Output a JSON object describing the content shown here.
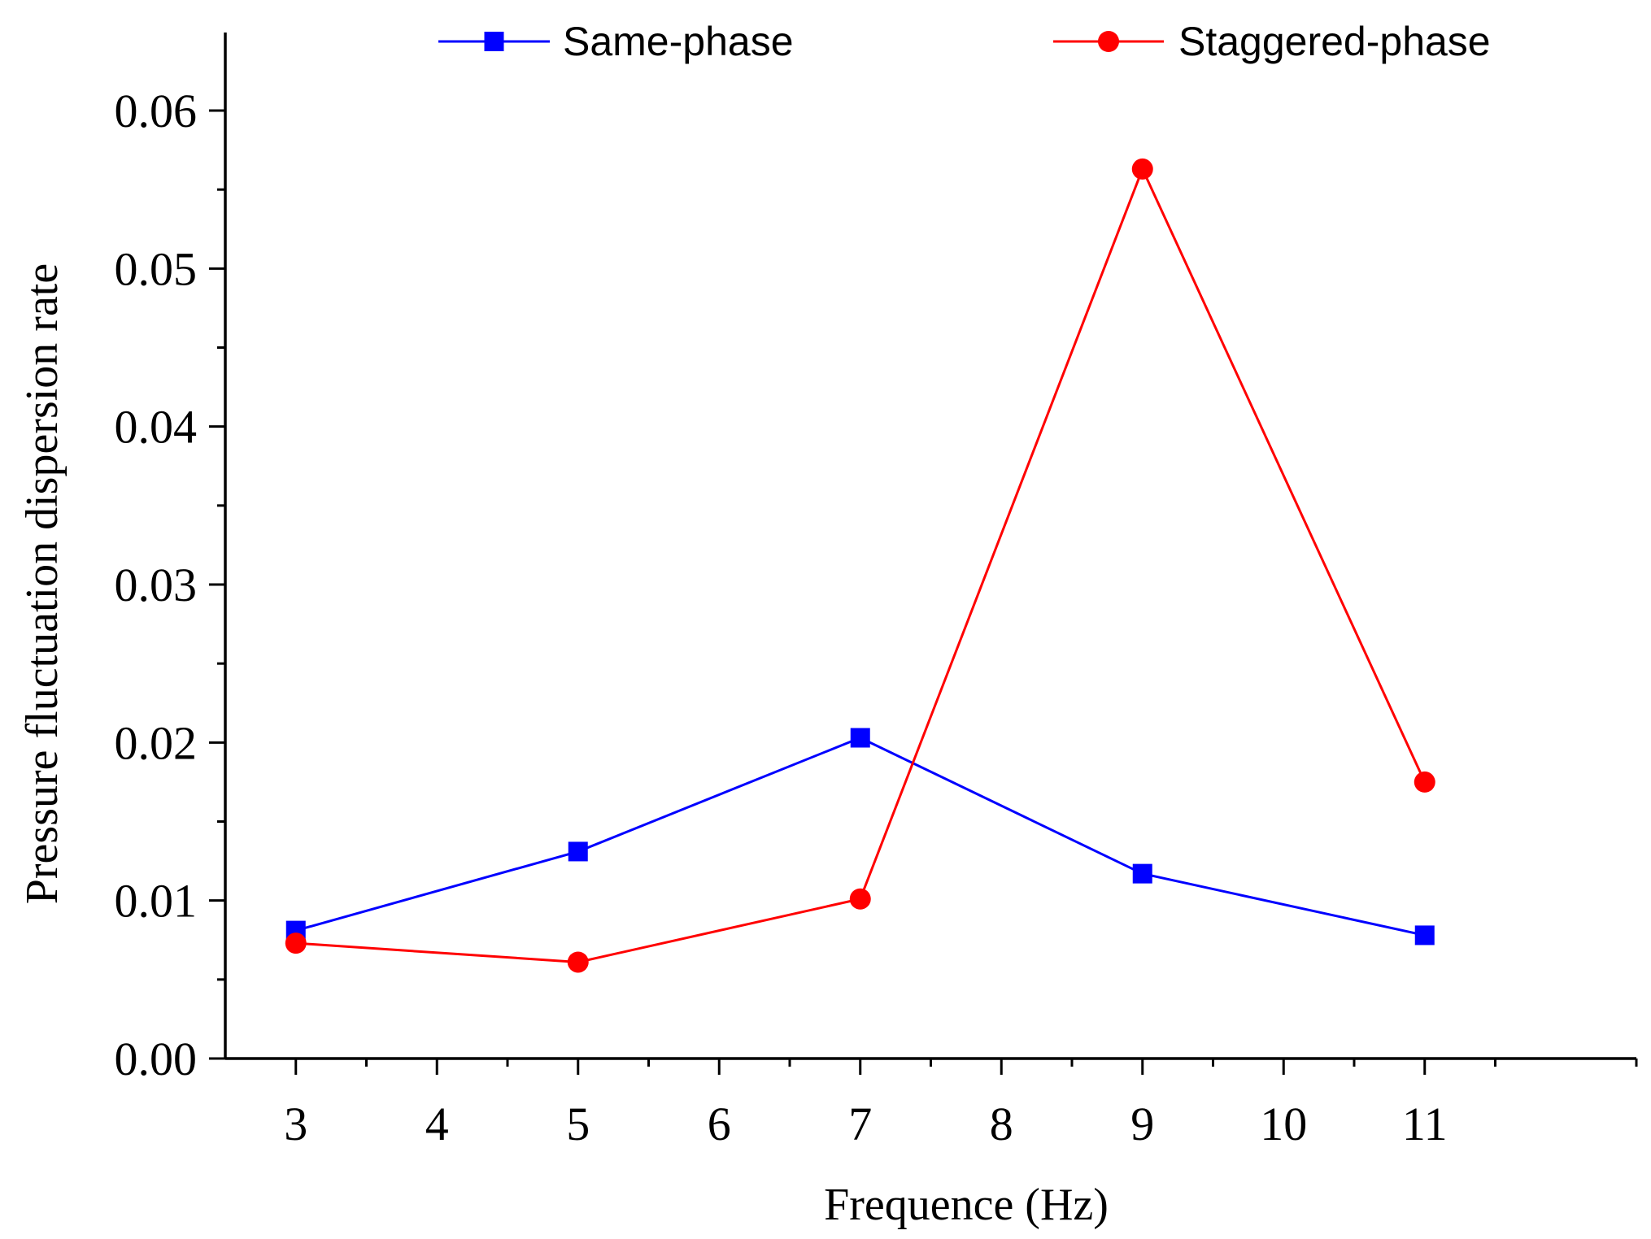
{
  "chart_data": {
    "type": "line",
    "title": "",
    "xlabel": "Frequence (Hz)",
    "ylabel": "Pressure fluctuation dispersion rate",
    "xlim": [
      2.5,
      12.5
    ],
    "ylim": [
      0.0,
      0.065
    ],
    "x_ticks": [
      "3",
      "4",
      "5",
      "6",
      "7",
      "8",
      "9",
      "10",
      "11"
    ],
    "x_tick_values": [
      3,
      4,
      5,
      6,
      7,
      8,
      9,
      10,
      11
    ],
    "y_ticks": [
      "0.00",
      "0.01",
      "0.02",
      "0.03",
      "0.04",
      "0.05",
      "0.06"
    ],
    "y_tick_values": [
      0.0,
      0.01,
      0.02,
      0.03,
      0.04,
      0.05,
      0.06
    ],
    "x": [
      3,
      5,
      7,
      9,
      11
    ],
    "series": [
      {
        "name": "Same-phase",
        "color": "#0000ff",
        "marker": "square",
        "values": [
          0.0081,
          0.0131,
          0.0203,
          0.0117,
          0.0078
        ]
      },
      {
        "name": "Staggered-phase",
        "color": "#ff0000",
        "marker": "circle",
        "values": [
          0.0073,
          0.0061,
          0.0101,
          0.0563,
          0.0175
        ]
      }
    ],
    "legend_position": "top",
    "grid": false
  }
}
